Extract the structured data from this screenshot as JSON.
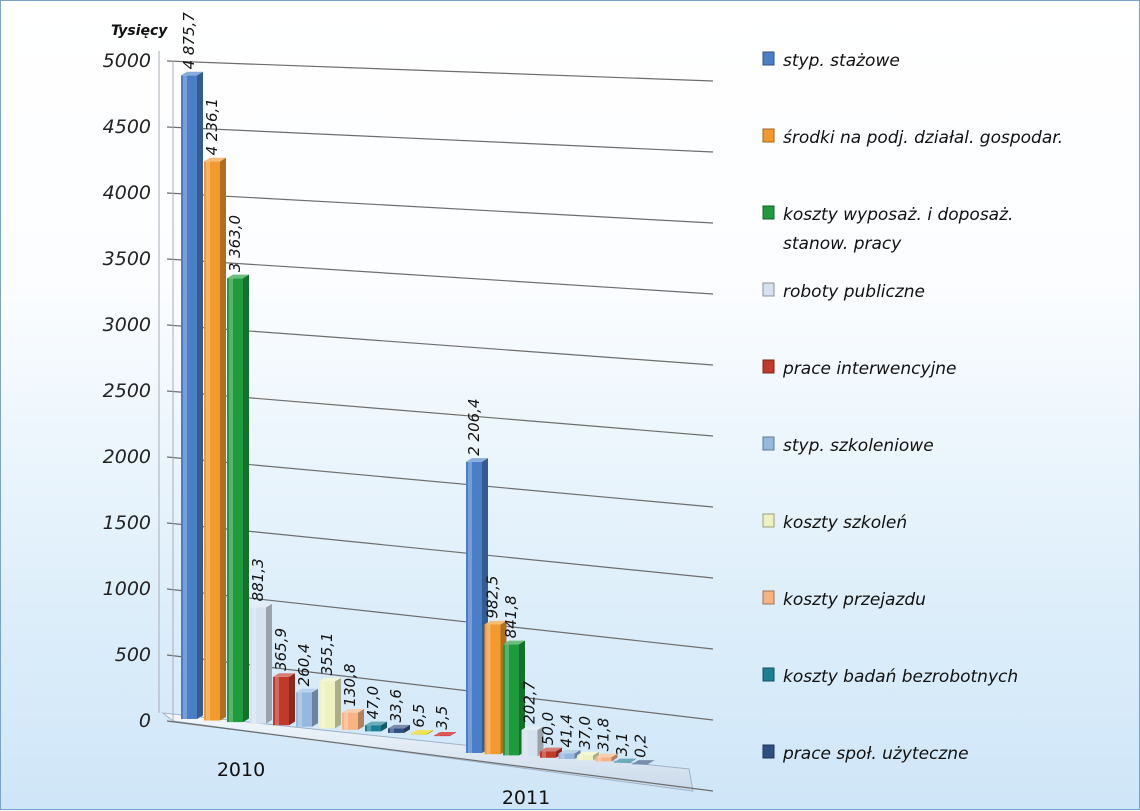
{
  "chart_data": {
    "type": "bar",
    "unit_label": "Tysięcy",
    "categories": [
      "2010",
      "2011"
    ],
    "ylim": [
      0,
      5000
    ],
    "yticks": [
      "0",
      "500",
      "1000",
      "1500",
      "2000",
      "2500",
      "3000",
      "3500",
      "4000",
      "4500",
      "5000"
    ],
    "grid": true,
    "legend_position": "right",
    "series": [
      {
        "name": "styp. stażowe",
        "color": "#4a7fc8",
        "values": [
          4875.7,
          2206.4
        ],
        "labels": [
          "4 875,7",
          "2 206,4"
        ]
      },
      {
        "name": "środki na podj. działal. gospodar.",
        "color": "#f39a2e",
        "values": [
          4236.1,
          982.5
        ],
        "labels": [
          "4 236,1",
          "982,5"
        ]
      },
      {
        "name": "koszty wyposaż. i doposaż. stanow. pracy",
        "color": "#1f9a3c",
        "values": [
          3363.0,
          841.8
        ],
        "labels": [
          "3 363,0",
          "841,8"
        ]
      },
      {
        "name": "roboty publiczne",
        "color": "#d6e2ef",
        "values": [
          881.3,
          202.7
        ],
        "labels": [
          "881,3",
          "202,7"
        ]
      },
      {
        "name": "prace interwencyjne",
        "color": "#c0392b",
        "values": [
          365.9,
          50.0
        ],
        "labels": [
          "365,9",
          "50,0"
        ]
      },
      {
        "name": "styp. szkoleniowe",
        "color": "#94b8de",
        "values": [
          260.4,
          41.4
        ],
        "labels": [
          "260,4",
          "41,4"
        ]
      },
      {
        "name": "koszty szkoleń",
        "color": "#eef2c0",
        "values": [
          355.1,
          37.0
        ],
        "labels": [
          "355,1",
          "37,0"
        ]
      },
      {
        "name": "koszty przejazdu",
        "color": "#f8b384",
        "values": [
          130.8,
          31.8
        ],
        "labels": [
          "130,8",
          "31,8"
        ]
      },
      {
        "name": "koszty badań bezrobotnych",
        "color": "#1c7f93",
        "values": [
          47.0,
          3.1
        ],
        "labels": [
          "47,0",
          "3,1"
        ]
      },
      {
        "name": "prace społ. użyteczne",
        "color": "#2f4f83",
        "values": [
          33.6,
          0.2
        ],
        "labels": [
          "33,6",
          "0,2"
        ]
      },
      {
        "name": "",
        "color": "#e8d400",
        "values": [
          6.5,
          null
        ],
        "labels": [
          "6,5",
          ""
        ]
      },
      {
        "name": "",
        "color": "#c80000",
        "values": [
          3.5,
          null
        ],
        "labels": [
          "3,5",
          ""
        ]
      }
    ]
  }
}
